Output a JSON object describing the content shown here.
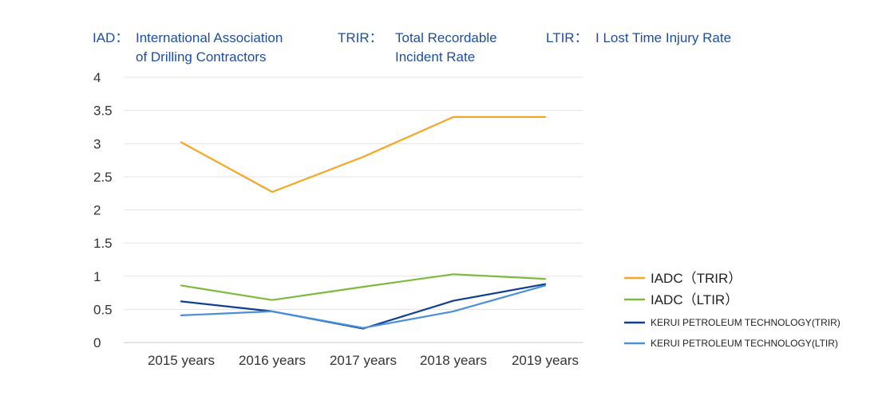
{
  "header": {
    "definitions": [
      {
        "abbr": "IAD：",
        "line1": "International Association",
        "line2": "of Drilling Contractors"
      },
      {
        "abbr": "TRIR：",
        "line1": "Total Recordable",
        "line2": "Incident Rate"
      },
      {
        "abbr": "LTIR：",
        "line1": "I Lost Time Injury Rate",
        "line2": ""
      }
    ]
  },
  "chart_data": {
    "type": "line",
    "categories": [
      "2015 years",
      "2016 years",
      "2017 years",
      "2018 years",
      "2019 years"
    ],
    "ylim": [
      0,
      4
    ],
    "yticks": [
      0,
      0.5,
      1,
      1.5,
      2,
      2.5,
      3,
      3.5,
      4
    ],
    "ytick_labels": [
      "0",
      "0.5",
      "1",
      "1.5",
      "2",
      "2.5",
      "3",
      "3.5",
      "4"
    ],
    "grid": true,
    "legend_position": "right",
    "series": [
      {
        "name": "IADC（TRIR）",
        "color": "#f5a623",
        "values": [
          3.02,
          2.27,
          2.8,
          3.4,
          3.4
        ]
      },
      {
        "name": "IADC（LTIR）",
        "color": "#7cbb3a",
        "values": [
          0.86,
          0.64,
          0.84,
          1.03,
          0.96
        ]
      },
      {
        "name": "KERUI PETROLEUM TECHNOLOGY(TRIR)",
        "color": "#0e3f91",
        "values": [
          0.62,
          0.47,
          0.21,
          0.63,
          0.88
        ]
      },
      {
        "name": "KERUI PETROLEUM TECHNOLOGY(LTIR)",
        "color": "#4a8fd8",
        "values": [
          0.41,
          0.47,
          0.22,
          0.47,
          0.86
        ]
      }
    ]
  }
}
